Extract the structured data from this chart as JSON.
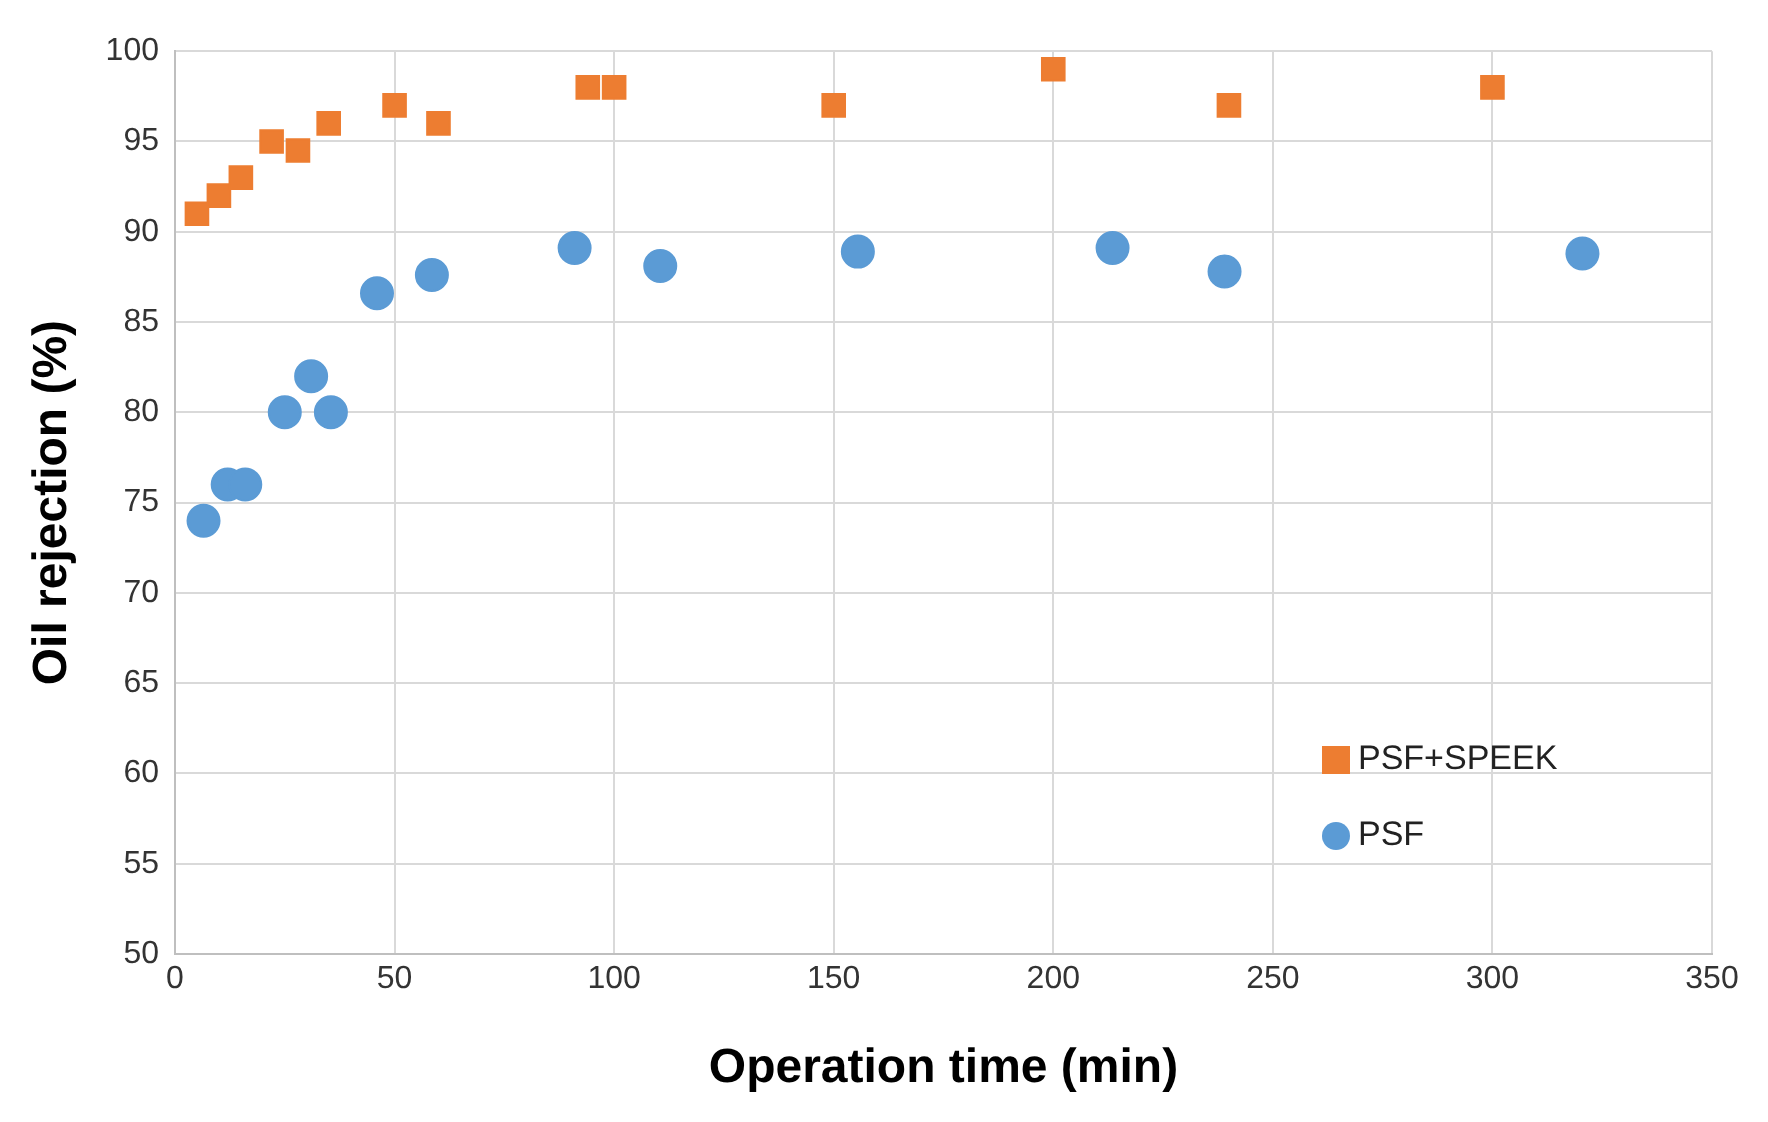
{
  "chart_data": {
    "type": "scatter",
    "xlabel": "Operation time (min)",
    "ylabel": "Oil rejection (%)",
    "xlim": [
      0,
      350
    ],
    "xticks": [
      0,
      50,
      100,
      150,
      200,
      250,
      300,
      350
    ],
    "ylim": [
      50,
      100
    ],
    "yticks": [
      50,
      55,
      60,
      65,
      70,
      75,
      80,
      85,
      90,
      95,
      100
    ],
    "grid": true,
    "legend": "bottom right",
    "series": [
      {
        "name": "PSF+SPEEK",
        "color": "#ed7d31",
        "marker": "square",
        "x": [
          5,
          10,
          15,
          22,
          28,
          35,
          50,
          60,
          94,
          100,
          150,
          200,
          240,
          300
        ],
        "values": [
          91,
          92,
          93,
          95,
          94.5,
          96,
          97,
          96,
          98,
          98,
          97,
          99,
          97,
          98
        ]
      },
      {
        "name": "PSF",
        "color": "#5b9bd5",
        "marker": "circle",
        "x": [
          6.5,
          12,
          16,
          25,
          31,
          35.5,
          46,
          58.5,
          91,
          110.5,
          155.5,
          213.5,
          239,
          320.5
        ],
        "values": [
          74,
          76,
          76,
          80,
          82,
          80,
          86.6,
          87.6,
          89.1,
          88.1,
          88.9,
          89.1,
          87.8,
          88.8
        ]
      }
    ]
  }
}
